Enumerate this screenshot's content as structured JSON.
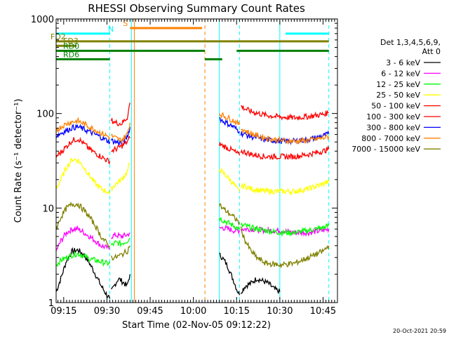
{
  "chart_data": {
    "type": "line",
    "title": "RHESSI Observing Summary Count Rates",
    "xlabel": "Start Time (02-Nov-05 09:12:22)",
    "ylabel": "Count Rate (s⁻¹ detector⁻¹)",
    "yscale": "log",
    "ylim": [
      1,
      1000
    ],
    "xlim": [
      "09:12:22",
      "10:50:00"
    ],
    "x_ticks": [
      "09:15",
      "09:30",
      "09:45",
      "10:00",
      "10:15",
      "10:30",
      "10:45"
    ],
    "y_ticks": [
      "1",
      "10",
      "100",
      "1000"
    ],
    "grid": false,
    "legend": {
      "placement": "right",
      "header": [
        "Det 1,3,4,5,6,9,",
        "Att 0"
      ],
      "entries": [
        {
          "label": "3 - 6 keV",
          "color": "#000000"
        },
        {
          "label": "6 - 12 keV",
          "color": "#ff00ff"
        },
        {
          "label": "12 - 25 keV",
          "color": "#00ff00"
        },
        {
          "label": "25 - 50 keV",
          "color": "#ffff00"
        },
        {
          "label": "50 - 100 keV",
          "color": "#ff0000"
        },
        {
          "label": "100 - 300 keV",
          "color": "#ff0000"
        },
        {
          "label": "300 - 800 keV",
          "color": "#0000ff"
        },
        {
          "label": "800 - 7000 keV",
          "color": "#ff8000"
        },
        {
          "label": "7000 - 15000 keV",
          "color": "#808000"
        }
      ]
    },
    "flag_lines": [
      {
        "label": "N",
        "color": "#00ffff",
        "level": 700,
        "segments": [
          [
            "09:12:22",
            "09:31:00"
          ],
          [
            "10:32:00",
            "10:47:00"
          ]
        ]
      },
      {
        "label": "S",
        "color": "#ff8000",
        "level": 800,
        "segments": [
          [
            "09:38:00",
            "10:03:00"
          ]
        ]
      },
      {
        "label": "FD2",
        "color": "#808000",
        "level": 580,
        "segments": [
          [
            "09:12:22",
            "10:47:00"
          ]
        ]
      },
      {
        "label": "FD3",
        "color": "#808000",
        "level": 520,
        "segments": [
          [
            "09:12:22",
            "09:19:30"
          ]
        ]
      },
      {
        "label": "RD0",
        "color": "#008000",
        "level": 460,
        "segments": [
          [
            "09:12:22",
            "09:31:00"
          ],
          [
            "09:31:00",
            "10:04:00"
          ],
          [
            "10:15:00",
            "10:47:00"
          ]
        ]
      },
      {
        "label": "RD6",
        "color": "#008000",
        "level": 375,
        "segments": [
          [
            "09:12:22",
            "09:31:00"
          ],
          [
            "10:04:00",
            "10:10:00"
          ]
        ]
      }
    ],
    "vertical_markers": [
      {
        "time": "09:31:00",
        "color": "#00ffff",
        "style": "dashed"
      },
      {
        "time": "09:38:30",
        "color": "#00ffff",
        "style": "solid"
      },
      {
        "time": "09:39:30",
        "color": "#ff8000",
        "style": "solid"
      },
      {
        "time": "10:04:00",
        "color": "#ff8000",
        "style": "dashed"
      },
      {
        "time": "10:09:00",
        "color": "#00ffff",
        "style": "solid"
      },
      {
        "time": "10:16:00",
        "color": "#00ffff",
        "style": "dashed"
      },
      {
        "time": "10:30:00",
        "color": "#00ffff",
        "style": "solid"
      },
      {
        "time": "10:47:00",
        "color": "#00ffff",
        "style": "dashed"
      }
    ],
    "series": [
      {
        "name": "3 - 6 keV",
        "color": "#000000",
        "segments": [
          {
            "x": [
              "09:12:22",
              "09:14:00",
              "09:16:00",
              "09:18:00",
              "09:20:00",
              "09:22:00",
              "09:24:00",
              "09:26:00",
              "09:28:00",
              "09:30:00",
              "09:31:00"
            ],
            "y": [
              1.3,
              1.8,
              2.8,
              3.5,
              3.6,
              3.2,
              2.6,
              2.0,
              1.5,
              1.2,
              1.1
            ]
          },
          {
            "x": [
              "09:31:30",
              "09:33:00",
              "09:34:00",
              "09:35:00",
              "09:36:00",
              "09:37:00",
              "09:38:00"
            ],
            "y": [
              1.3,
              1.6,
              1.8,
              1.7,
              1.6,
              1.5,
              2.0
            ]
          },
          {
            "x": [
              "10:09:00",
              "10:10:00",
              "10:11:00",
              "10:12:00",
              "10:13:00",
              "10:14:00",
              "10:15:00",
              "10:16:00"
            ],
            "y": [
              3.2,
              3.0,
              2.7,
              2.4,
              2.0,
              1.7,
              1.4,
              1.2
            ]
          },
          {
            "x": [
              "10:16:30",
              "10:18:00",
              "10:20:00",
              "10:22:00",
              "10:24:00",
              "10:26:00",
              "10:28:00",
              "10:30:00"
            ],
            "y": [
              1.3,
              1.5,
              1.6,
              1.8,
              1.7,
              1.6,
              1.4,
              1.3
            ]
          }
        ]
      },
      {
        "name": "6 - 12 keV",
        "color": "#ff00ff",
        "segments": [
          {
            "x": [
              "09:12:22",
              "09:14:00",
              "09:16:00",
              "09:18:00",
              "09:20:00",
              "09:22:00",
              "09:24:00",
              "09:26:00",
              "09:28:00",
              "09:30:00",
              "09:31:00"
            ],
            "y": [
              3.5,
              4.5,
              5.5,
              6.0,
              6.0,
              5.5,
              5.0,
              4.5,
              4.0,
              3.8,
              3.7
            ]
          },
          {
            "x": [
              "09:31:30",
              "09:33:00",
              "09:35:00",
              "09:37:00",
              "09:38:00"
            ],
            "y": [
              5.0,
              5.2,
              5.0,
              5.2,
              5.5
            ]
          },
          {
            "x": [
              "10:09:00",
              "10:10:00",
              "10:12:00",
              "10:14:00",
              "10:15:00",
              "10:16:00"
            ],
            "y": [
              6.0,
              6.2,
              6.0,
              5.8,
              5.7,
              5.8
            ]
          },
          {
            "x": [
              "10:16:30",
              "10:20:00",
              "10:25:00",
              "10:30:00",
              "10:35:00",
              "10:40:00",
              "10:45:00",
              "10:47:00"
            ],
            "y": [
              6.0,
              6.0,
              5.8,
              5.8,
              5.5,
              5.5,
              5.8,
              6.0
            ]
          }
        ]
      },
      {
        "name": "12 - 25 keV",
        "color": "#00ff00",
        "segments": [
          {
            "x": [
              "09:12:22",
              "09:14:00",
              "09:16:00",
              "09:18:00",
              "09:20:00",
              "09:22:00",
              "09:24:00",
              "09:26:00",
              "09:28:00",
              "09:30:00",
              "09:31:00"
            ],
            "y": [
              2.5,
              2.8,
              3.0,
              3.2,
              3.3,
              3.1,
              2.9,
              2.8,
              2.7,
              2.6,
              2.6
            ]
          },
          {
            "x": [
              "09:31:30",
              "09:33:00",
              "09:35:00",
              "09:37:00",
              "09:38:00"
            ],
            "y": [
              4.0,
              4.3,
              4.2,
              4.5,
              4.8
            ]
          },
          {
            "x": [
              "10:09:00",
              "10:10:00",
              "10:12:00",
              "10:14:00",
              "10:15:00",
              "10:16:00"
            ],
            "y": [
              8.0,
              7.5,
              7.0,
              6.5,
              6.2,
              6.0
            ]
          },
          {
            "x": [
              "10:16:30",
              "10:18:00",
              "10:20:00",
              "10:25:00",
              "10:30:00",
              "10:35:00",
              "10:40:00",
              "10:45:00",
              "10:47:00"
            ],
            "y": [
              6.5,
              6.5,
              6.2,
              5.8,
              5.5,
              5.5,
              5.8,
              6.2,
              6.5
            ]
          }
        ]
      },
      {
        "name": "25 - 50 keV",
        "color": "#ffff00",
        "segments": [
          {
            "x": [
              "09:12:22",
              "09:14:00",
              "09:16:00",
              "09:18:00",
              "09:20:00",
              "09:22:00",
              "09:24:00",
              "09:26:00",
              "09:28:00",
              "09:30:00",
              "09:31:00"
            ],
            "y": [
              16,
              20,
              27,
              33,
              32,
              27,
              22,
              18,
              16,
              15,
              14
            ]
          },
          {
            "x": [
              "09:31:30",
              "09:33:00",
              "09:35:00",
              "09:37:00",
              "09:38:00"
            ],
            "y": [
              16,
              18,
              20,
              24,
              30
            ]
          },
          {
            "x": [
              "10:09:00",
              "10:10:00",
              "10:12:00",
              "10:14:00",
              "10:15:00",
              "10:16:00"
            ],
            "y": [
              26,
              24,
              21,
              18,
              16,
              15
            ]
          },
          {
            "x": [
              "10:16:30",
              "10:18:00",
              "10:20:00",
              "10:25:00",
              "10:30:00",
              "10:35:00",
              "10:40:00",
              "10:45:00",
              "10:47:00"
            ],
            "y": [
              17,
              17,
              16,
              15,
              15,
              15,
              16,
              18,
              19
            ]
          }
        ]
      },
      {
        "name": "50 - 100 keV",
        "color": "#ff0000",
        "segments": [
          {
            "x": [
              "09:12:22",
              "09:14:00",
              "09:16:00",
              "09:18:00",
              "09:20:00",
              "09:22:00",
              "09:24:00",
              "09:26:00",
              "09:28:00",
              "09:30:00",
              "09:31:00"
            ],
            "y": [
              35,
              39,
              45,
              52,
              54,
              48,
              42,
              38,
              35,
              32,
              31
            ]
          },
          {
            "x": [
              "09:31:30",
              "09:33:00",
              "09:35:00",
              "09:37:00",
              "09:38:00"
            ],
            "y": [
              40,
              42,
              45,
              50,
              55
            ]
          },
          {
            "x": [
              "10:09:00",
              "10:10:00",
              "10:12:00",
              "10:14:00",
              "10:15:00",
              "10:16:00"
            ],
            "y": [
              48,
              46,
              43,
              40,
              38,
              36
            ]
          },
          {
            "x": [
              "10:16:30",
              "10:18:00",
              "10:20:00",
              "10:25:00",
              "10:30:00",
              "10:35:00",
              "10:40:00",
              "10:45:00",
              "10:47:00"
            ],
            "y": [
              40,
              39,
              37,
              35,
              35,
              35,
              37,
              40,
              42
            ]
          }
        ]
      },
      {
        "name": "100 - 300 keV",
        "color": "#ff0000",
        "segments": [
          {
            "x": [
              "09:31:30",
              "09:33:00",
              "09:35:00",
              "09:37:00",
              "09:38:00"
            ],
            "y": [
              85,
              80,
              78,
              90,
              130
            ]
          },
          {
            "x": [
              "10:16:30",
              "10:18:00",
              "10:20:00",
              "10:25:00",
              "10:30:00",
              "10:35:00",
              "10:40:00",
              "10:45:00",
              "10:47:00"
            ],
            "y": [
              120,
              112,
              105,
              96,
              92,
              90,
              93,
              98,
              102
            ]
          }
        ]
      },
      {
        "name": "300 - 800 keV",
        "color": "#0000ff",
        "segments": [
          {
            "x": [
              "09:12:22",
              "09:14:00",
              "09:16:00",
              "09:18:00",
              "09:20:00",
              "09:22:00",
              "09:24:00",
              "09:26:00",
              "09:28:00",
              "09:30:00",
              "09:31:00"
            ],
            "y": [
              58,
              62,
              66,
              71,
              72,
              68,
              64,
              60,
              56,
              52,
              50
            ]
          },
          {
            "x": [
              "09:31:30",
              "09:33:00",
              "09:35:00",
              "09:37:00",
              "09:38:00"
            ],
            "y": [
              52,
              50,
              49,
              56,
              72
            ]
          },
          {
            "x": [
              "10:09:00",
              "10:10:00",
              "10:12:00",
              "10:14:00",
              "10:15:00",
              "10:16:00"
            ],
            "y": [
              90,
              84,
              78,
              72,
              68,
              65
            ]
          },
          {
            "x": [
              "10:16:30",
              "10:18:00",
              "10:20:00",
              "10:25:00",
              "10:30:00",
              "10:35:00",
              "10:40:00",
              "10:45:00",
              "10:47:00"
            ],
            "y": [
              62,
              60,
              57,
              53,
              51,
              51,
              53,
              58,
              61
            ]
          }
        ]
      },
      {
        "name": "800 - 7000 keV",
        "color": "#ff8000",
        "segments": [
          {
            "x": [
              "09:12:22",
              "09:14:00",
              "09:16:00",
              "09:18:00",
              "09:20:00",
              "09:22:00",
              "09:24:00",
              "09:26:00",
              "09:28:00",
              "09:30:00",
              "09:31:00"
            ],
            "y": [
              66,
              72,
              78,
              82,
              83,
              78,
              72,
              67,
              62,
              58,
              56
            ]
          },
          {
            "x": [
              "09:31:30",
              "09:33:00",
              "09:35:00",
              "09:37:00",
              "09:38:00"
            ],
            "y": [
              58,
              55,
              52,
              60,
              80
            ]
          },
          {
            "x": [
              "10:09:00",
              "10:10:00",
              "10:12:00",
              "10:14:00",
              "10:15:00",
              "10:16:00"
            ],
            "y": [
              100,
              96,
              90,
              84,
              80,
              76
            ]
          },
          {
            "x": [
              "10:16:30",
              "10:18:00",
              "10:20:00",
              "10:25:00",
              "10:30:00",
              "10:35:00",
              "10:40:00",
              "10:45:00",
              "10:47:00"
            ],
            "y": [
              70,
              66,
              61,
              55,
              52,
              51,
              52,
              55,
              57
            ]
          }
        ]
      },
      {
        "name": "7000 - 15000 keV",
        "color": "#808000",
        "segments": [
          {
            "x": [
              "09:12:22",
              "09:14:00",
              "09:16:00",
              "09:18:00",
              "09:20:00",
              "09:22:00",
              "09:24:00",
              "09:26:00",
              "09:28:00",
              "09:30:00",
              "09:31:00"
            ],
            "y": [
              6.0,
              8.0,
              10.0,
              11.0,
              11.0,
              9.5,
              8.0,
              6.5,
              5.0,
              4.2,
              4.0
            ]
          },
          {
            "x": [
              "09:31:30",
              "09:33:00",
              "09:35:00",
              "09:37:00",
              "09:38:00"
            ],
            "y": [
              3.0,
              3.0,
              3.2,
              3.5,
              4.0
            ]
          },
          {
            "x": [
              "10:09:00",
              "10:10:00",
              "10:12:00",
              "10:14:00",
              "10:15:00",
              "10:16:00"
            ],
            "y": [
              11,
              10,
              9,
              8,
              7.5,
              7
            ]
          },
          {
            "x": [
              "10:16:30",
              "10:18:00",
              "10:20:00",
              "10:22:00",
              "10:25:00",
              "10:30:00",
              "10:35:00",
              "10:40:00",
              "10:45:00",
              "10:47:00"
            ],
            "y": [
              6,
              4.5,
              3.5,
              3,
              2.6,
              2.5,
              2.6,
              3,
              3.5,
              4
            ]
          }
        ]
      }
    ]
  },
  "footer": {
    "timestamp": "20-Oct-2021 20:59"
  }
}
